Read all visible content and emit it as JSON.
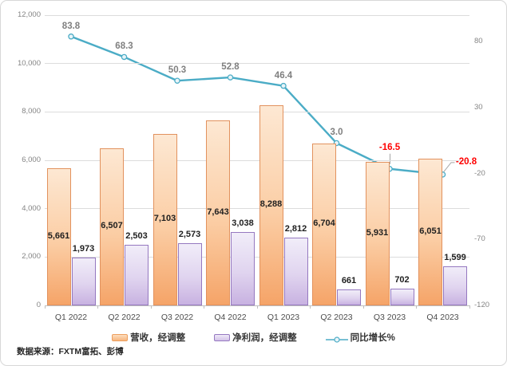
{
  "chart_data": {
    "type": "bar",
    "subtype": "combo-bar-line",
    "categories": [
      "Q1 2022",
      "Q2 2022",
      "Q3 2022",
      "Q4 2022",
      "Q1 2023",
      "Q2 2023",
      "Q3 2023",
      "Q4 2023"
    ],
    "series": [
      {
        "name": "营收，经调整",
        "type": "bar",
        "axis": "left",
        "values": [
          5661,
          6507,
          7103,
          7643,
          8288,
          6704,
          5931,
          6051
        ],
        "labels": [
          "5,661",
          "6,507",
          "7,103",
          "7,643",
          "8,288",
          "6,704",
          "5,931",
          "6,051"
        ],
        "color_top": "#FDE8D3",
        "color_bottom": "#F5A468",
        "border_color": "#E2925E"
      },
      {
        "name": "净利润，经调整",
        "type": "bar",
        "axis": "left",
        "values": [
          1973,
          2503,
          2573,
          3038,
          2812,
          661,
          702,
          1599
        ],
        "labels": [
          "1,973",
          "2,503",
          "2,573",
          "3,038",
          "2,812",
          "661",
          "702",
          "1,599"
        ],
        "color_top": "#F1EDF9",
        "color_bottom": "#C8B2E1",
        "border_color": "#9578C0"
      },
      {
        "name": "同比增长%",
        "type": "line",
        "axis": "right",
        "values": [
          83.8,
          68.3,
          50.3,
          52.8,
          46.4,
          3.0,
          -16.5,
          -20.8
        ],
        "labels": [
          "83.8",
          "68.3",
          "50.3",
          "52.8",
          "46.4",
          "3.0",
          "-16.5",
          "-20.8"
        ],
        "label_colors": [
          "#7F7F7F",
          "#7F7F7F",
          "#7F7F7F",
          "#7F7F7F",
          "#7F7F7F",
          "#7F7F7F",
          "#FF0000",
          "#FF0000"
        ],
        "color": "#4BACC6"
      }
    ],
    "left_axis": {
      "min": 0,
      "max": 12000,
      "ticks": [
        {
          "value": 0,
          "label": "0"
        },
        {
          "value": 2000,
          "label": "2,000"
        },
        {
          "value": 4000,
          "label": "4,000"
        },
        {
          "value": 6000,
          "label": "6,000"
        },
        {
          "value": 8000,
          "label": "8,000"
        },
        {
          "value": 10000,
          "label": "10,000"
        },
        {
          "value": 12000,
          "label": "12,000"
        }
      ]
    },
    "right_axis": {
      "min": -120,
      "max": 100,
      "ticks": [
        {
          "value": 80,
          "label": "80"
        },
        {
          "value": 30,
          "label": "30"
        },
        {
          "value": -20,
          "label": "-20"
        },
        {
          "value": -70,
          "label": "-70"
        },
        {
          "value": -120,
          "label": "-120"
        }
      ]
    },
    "grid": "horizontal",
    "legend_position": "bottom",
    "source": "数据来源：FXTM富拓、彭博",
    "gridline_color": "#DCDCDC",
    "leader_line_color": "#A6A6A6"
  }
}
